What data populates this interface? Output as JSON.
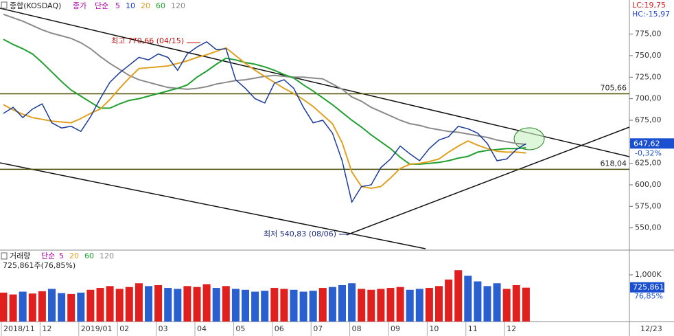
{
  "chart_data": {
    "type": "line",
    "title": "종합(KOSDAQ)",
    "price_label": "종가",
    "ma_label": "단순",
    "ma_legend": [
      {
        "name": "5",
        "color": "#b000b0"
      },
      {
        "name": "10",
        "color": "#1030c0"
      }
    ],
    "categories": [
      "2018/11",
      null,
      null,
      null,
      "12",
      null,
      null,
      null,
      "2019/01",
      null,
      null,
      null,
      "02",
      null,
      null,
      null,
      "03",
      null,
      null,
      null,
      "04",
      null,
      null,
      null,
      "05",
      null,
      null,
      null,
      "06",
      null,
      null,
      null,
      "07",
      null,
      null,
      null,
      "08",
      null,
      null,
      null,
      "09",
      null,
      null,
      null,
      "10",
      null,
      null,
      null,
      "11",
      null,
      null,
      null,
      "12",
      null,
      null
    ],
    "price": {
      "color": "#1a3a9a",
      "values": [
        683,
        690,
        678,
        688,
        694,
        672,
        666,
        668,
        662,
        679,
        700,
        719,
        730,
        739,
        748,
        745,
        752,
        748,
        733,
        752,
        760,
        766,
        757,
        758,
        722,
        712,
        700,
        695,
        718,
        722,
        712,
        690,
        672,
        675,
        660,
        628,
        580,
        598,
        600,
        620,
        630,
        645,
        636,
        628,
        642,
        652,
        656,
        668,
        665,
        660,
        648,
        628,
        630,
        641,
        647.62
      ]
    },
    "series": [
      {
        "name": "20",
        "color": "#e0a020",
        "values": [
          693,
          687,
          682,
          678,
          676,
          674,
          673,
          672,
          677,
          683,
          688,
          699,
          712,
          724,
          735,
          736,
          737,
          738,
          741,
          744,
          748,
          751,
          755,
          759,
          750,
          741,
          733,
          726,
          719,
          712,
          706,
          699,
          691,
          681,
          671,
          649,
          615,
          598,
          596,
          598,
          608,
          619,
          624,
          625,
          627,
          630,
          638,
          645,
          651,
          646,
          642,
          639,
          638,
          638,
          637
        ]
      },
      {
        "name": "60",
        "color": "#20a030",
        "values": [
          769,
          763,
          758,
          752,
          742,
          731,
          720,
          710,
          703,
          696,
          689,
          689,
          694,
          698,
          700,
          703,
          706,
          709,
          712,
          716,
          725,
          732,
          740,
          747,
          745,
          742,
          740,
          737,
          733,
          728,
          724,
          716,
          709,
          701,
          693,
          684,
          675,
          667,
          658,
          650,
          642,
          632,
          624,
          624,
          625,
          626,
          628,
          631,
          633,
          638,
          640,
          641,
          642,
          642,
          643
        ]
      },
      {
        "name": "120",
        "color": "#8a8a8a",
        "values": [
          798,
          794,
          790,
          785,
          780,
          776,
          773,
          770,
          765,
          758,
          749,
          741,
          734,
          727,
          722,
          719,
          716,
          713,
          712,
          711,
          712,
          714,
          717,
          719,
          721,
          722,
          724,
          726,
          727,
          726,
          725,
          725,
          724,
          723,
          717,
          711,
          702,
          697,
          690,
          685,
          680,
          675,
          671,
          669,
          666,
          664,
          662,
          661,
          659,
          657,
          655,
          652,
          650,
          648,
          647
        ]
      }
    ],
    "ylim": [
      525,
      813
    ],
    "yticks": [
      {
        "value": 550,
        "label": "550,00"
      },
      {
        "value": 575,
        "label": "575,00"
      },
      {
        "value": 600,
        "label": "600,00"
      },
      {
        "value": 625,
        "label": "625,00"
      },
      {
        "value": 650,
        "label": "650,00"
      },
      {
        "value": 675,
        "label": "675,00"
      },
      {
        "value": 700,
        "label": "700,00"
      },
      {
        "value": 725,
        "label": "725,00"
      },
      {
        "value": 750,
        "label": "750,00"
      },
      {
        "value": 775,
        "label": "775,00"
      }
    ],
    "grid": false,
    "hlines": [
      {
        "value": 705.66,
        "label": "705,66"
      },
      {
        "value": 618.04,
        "label": "618,04"
      }
    ],
    "last_price_label": "647,62",
    "change_label": "-0,32%",
    "lc_label": "LC:19,75",
    "hc_label": "HC:-15,97",
    "high_annotation": "최고 770,66 (04/15)",
    "low_annotation": "최저 540,83 (08/06)",
    "cursor_date": "12/23",
    "volume": {
      "type": "bar",
      "title": "거래량",
      "ma_label": "단순",
      "ma_legend": [
        {
          "name": "5",
          "color": "#b000b0"
        },
        {
          "name": "20",
          "color": "#e0a020"
        },
        {
          "name": "60",
          "color": "#20a030"
        },
        {
          "name": "120",
          "color": "#8a8a8a"
        }
      ],
      "summary": "725,861주(76,85%)",
      "values": [
        620,
        580,
        640,
        600,
        650,
        700,
        610,
        590,
        620,
        680,
        720,
        760,
        700,
        740,
        820,
        760,
        780,
        720,
        700,
        760,
        740,
        800,
        720,
        760,
        700,
        680,
        640,
        660,
        720,
        700,
        680,
        640,
        660,
        720,
        740,
        780,
        820,
        700,
        680,
        700,
        720,
        740,
        680,
        700,
        720,
        760,
        900,
        1100,
        980,
        860,
        760,
        820,
        700,
        780,
        725.861
      ],
      "ylim": [
        0,
        1515
      ],
      "yticks": [
        {
          "value": 1000,
          "label": "1,000K"
        }
      ],
      "last_label": "725,861",
      "ratio_label": "76,85%"
    }
  }
}
